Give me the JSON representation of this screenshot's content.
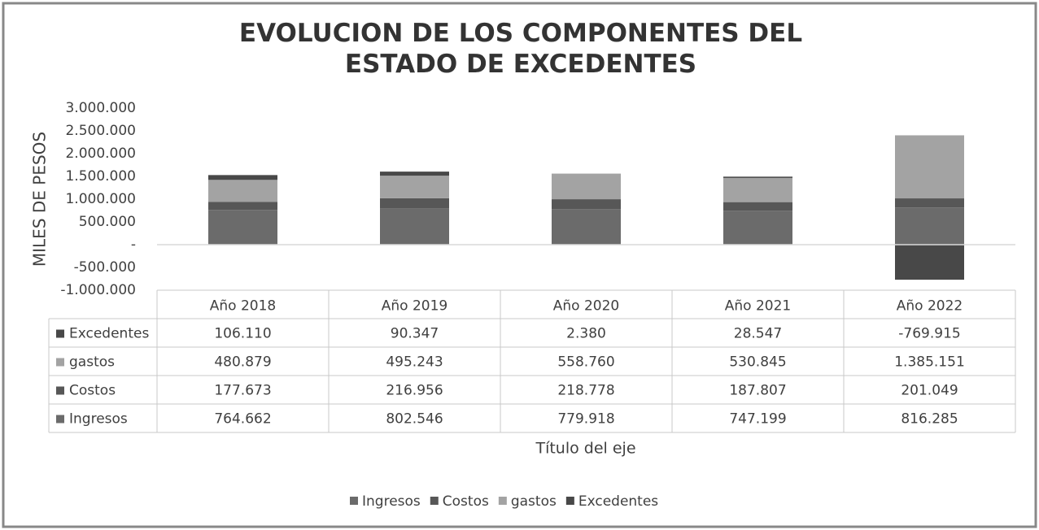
{
  "chart_data": {
    "type": "stacked_bar",
    "title": "EVOLUCION DE LOS COMPONENTES DEL ESTADO DE EXCEDENTES",
    "y_label": "MILES DE PESOS",
    "x_label": "Título del eje",
    "categories": [
      "Año 2018",
      "Año 2019",
      "Año 2020",
      "Año 2021",
      "Año 2022"
    ],
    "series": [
      {
        "name": "Ingresos",
        "color": "#6b6b6b",
        "values": [
          764662,
          802546,
          779918,
          747199,
          816285
        ],
        "value_labels": [
          "764.662",
          "802.546",
          "779.918",
          "747.199",
          "816.285"
        ]
      },
      {
        "name": "Costos",
        "color": "#575757",
        "values": [
          177673,
          216956,
          218778,
          187807,
          201049
        ],
        "value_labels": [
          "177.673",
          "216.956",
          "218.778",
          "187.807",
          "201.049"
        ]
      },
      {
        "name": "gastos",
        "color": "#a3a3a3",
        "values": [
          480879,
          495243,
          558760,
          530845,
          1385151
        ],
        "value_labels": [
          "480.879",
          "495.243",
          "558.760",
          "530.845",
          "1.385.151"
        ]
      },
      {
        "name": "Excedentes",
        "color": "#484848",
        "values": [
          106110,
          90347,
          2380,
          28547,
          -769915
        ],
        "value_labels": [
          "106.110",
          "90.347",
          "2.380",
          "28.547",
          "-769.915"
        ]
      }
    ],
    "ylim": [
      -1000000,
      3000000
    ],
    "yticks": [
      {
        "value": -1000000,
        "label": "-1.000.000"
      },
      {
        "value": -500000,
        "label": "-500.000"
      },
      {
        "value": 0,
        "label": "-"
      },
      {
        "value": 500000,
        "label": "500.000"
      },
      {
        "value": 1000000,
        "label": "1.000.000"
      },
      {
        "value": 1500000,
        "label": "1.500.000"
      },
      {
        "value": 2000000,
        "label": "2.000.000"
      },
      {
        "value": 2500000,
        "label": "2.500.000"
      },
      {
        "value": 3000000,
        "label": "3.000.000"
      }
    ],
    "grid": false
  }
}
